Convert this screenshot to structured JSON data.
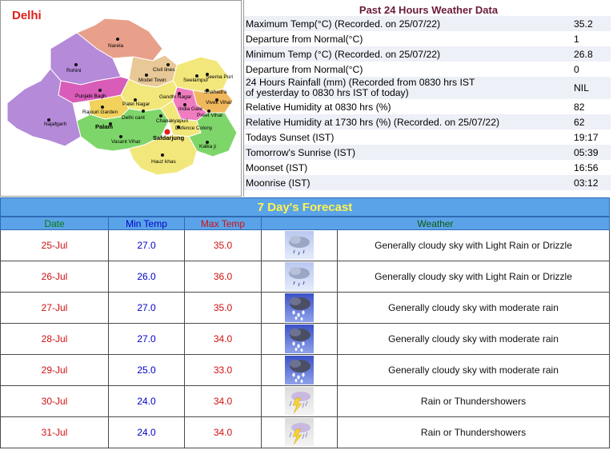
{
  "city": "Delhi",
  "map_labels": [
    "Narela",
    "Rohini",
    "Civil lines",
    "Model Town",
    "Seema Puri",
    "Seelampur",
    "Punjabi Bagh",
    "Gandhi Nagar",
    "Shahadra",
    "Vivek Vihar",
    "Patel Nagar",
    "Rajouri Garden",
    "India Gate",
    "Delhi cant",
    "Preet Vihar",
    "Chanakyapuri",
    "Najafgarh",
    "Palam",
    "Defence Colony",
    "Safdarjung",
    "Vasant Vihar",
    "Kalka ji",
    "Hauz khas"
  ],
  "observations": {
    "title": "Past 24 Hours Weather Data",
    "rows": [
      {
        "label": "Maximum Temp(°C) (Recorded. on 25/07/22)",
        "value": "35.2"
      },
      {
        "label": "Departure from Normal(°C)",
        "value": "1"
      },
      {
        "label": "Minimum Temp (°C) (Recorded. on 25/07/22)",
        "value": "26.8"
      },
      {
        "label": "Departure from Normal(°C)",
        "value": "0"
      },
      {
        "label": "24 Hours Rainfall (mm) (Recorded from 0830 hrs IST",
        "label2": "of yesterday to 0830 hrs IST of today)",
        "value": "NIL"
      },
      {
        "label": "Relative Humidity at 0830 hrs (%)",
        "value": "82"
      },
      {
        "label": "Relative Humidity at 1730 hrs (%) (Recorded. on 25/07/22)",
        "value": "62"
      },
      {
        "label": "Todays Sunset (IST)",
        "value": "19:17"
      },
      {
        "label": "Tomorrow's Sunrise (IST)",
        "value": "05:39"
      },
      {
        "label": "Moonset (IST)",
        "value": "16:56"
      },
      {
        "label": "Moonrise (IST)",
        "value": "03:12"
      }
    ]
  },
  "forecast": {
    "title": "7 Day's Forecast",
    "headers": {
      "date": "Date",
      "min": "Min Temp",
      "max": "Max Temp",
      "weather": "Weather"
    },
    "rows": [
      {
        "date": "25-Jul",
        "min": "27.0",
        "max": "35.0",
        "icon": "light-rain-icon",
        "weather": "Generally cloudy sky with Light Rain or Drizzle"
      },
      {
        "date": "26-Jul",
        "min": "26.0",
        "max": "36.0",
        "icon": "light-rain-icon",
        "weather": "Generally cloudy sky with Light Rain or Drizzle"
      },
      {
        "date": "27-Jul",
        "min": "27.0",
        "max": "35.0",
        "icon": "moderate-rain-icon",
        "weather": "Generally cloudy sky with moderate rain"
      },
      {
        "date": "28-Jul",
        "min": "27.0",
        "max": "34.0",
        "icon": "moderate-rain-icon",
        "weather": "Generally cloudy sky with moderate rain"
      },
      {
        "date": "29-Jul",
        "min": "25.0",
        "max": "33.0",
        "icon": "moderate-rain-icon",
        "weather": "Generally cloudy sky with moderate rain"
      },
      {
        "date": "30-Jul",
        "min": "24.0",
        "max": "34.0",
        "icon": "thundershower-icon",
        "weather": "Rain or Thundershowers"
      },
      {
        "date": "31-Jul",
        "min": "24.0",
        "max": "34.0",
        "icon": "thundershower-icon",
        "weather": "Rain or Thundershowers"
      }
    ]
  },
  "colors": {
    "accent": "#5ba3e8",
    "title_yellow": "#fff44f",
    "date_red": "#d01010",
    "min_blue": "#0000c8"
  }
}
